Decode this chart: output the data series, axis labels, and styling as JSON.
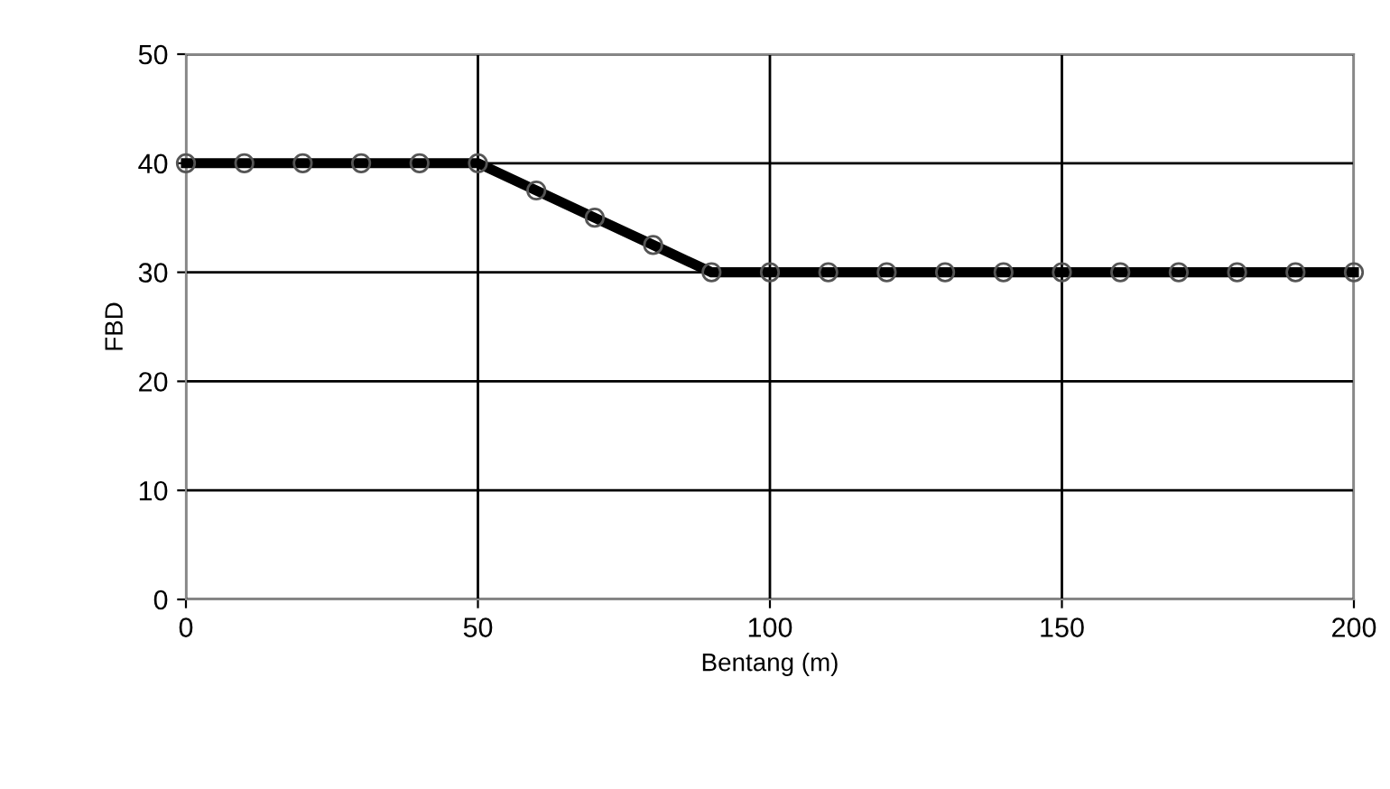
{
  "chart_data": {
    "type": "line",
    "xlabel": "Bentang (m)",
    "ylabel": "FBD",
    "x": [
      0,
      10,
      20,
      30,
      40,
      50,
      60,
      70,
      80,
      90,
      100,
      110,
      120,
      130,
      140,
      150,
      160,
      170,
      180,
      190,
      200
    ],
    "series": [
      {
        "color": "#000000",
        "values": [
          40,
          40,
          40,
          40,
          40,
          40,
          37.5,
          35,
          32.5,
          30,
          30,
          30,
          30,
          30,
          30,
          30,
          30,
          30,
          30,
          30,
          30
        ]
      }
    ],
    "xlim": [
      0,
      200
    ],
    "xticks": [
      0,
      50,
      100,
      150,
      200
    ],
    "ylim": [
      0,
      50
    ],
    "yticks": [
      0,
      10,
      20,
      30,
      40,
      50
    ],
    "grid": true,
    "marker": "circle",
    "line_style": "solid",
    "legend": false
  }
}
